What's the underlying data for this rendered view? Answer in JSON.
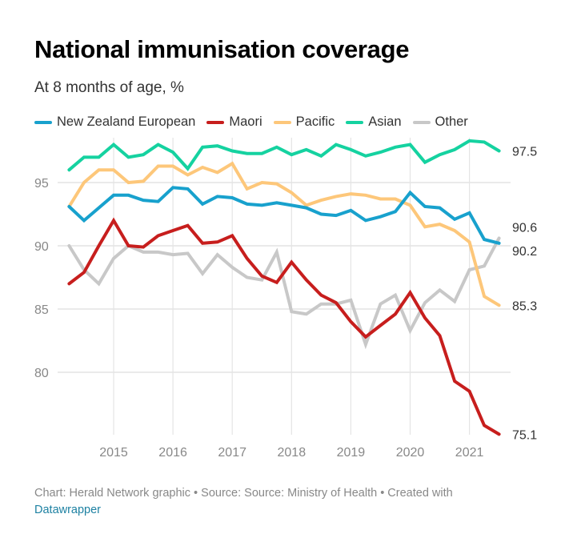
{
  "chart_data": {
    "type": "line",
    "title": "National immunisation coverage",
    "subtitle": "At 8 months of age, %",
    "xlabel": "",
    "ylabel": "",
    "x": [
      2014.25,
      2014.5,
      2014.75,
      2015.0,
      2015.25,
      2015.5,
      2015.75,
      2016.0,
      2016.25,
      2016.5,
      2016.75,
      2017.0,
      2017.25,
      2017.5,
      2017.75,
      2018.0,
      2018.25,
      2018.5,
      2018.75,
      2019.0,
      2019.25,
      2019.5,
      2019.75,
      2020.0,
      2020.25,
      2020.5,
      2020.75,
      2021.0,
      2021.25,
      2021.5
    ],
    "x_ticks": [
      2015,
      2016,
      2017,
      2018,
      2019,
      2020,
      2021
    ],
    "x_tick_labels": [
      "2015",
      "2016",
      "2017",
      "2018",
      "2019",
      "2020",
      "2021"
    ],
    "xlim": [
      2014.0,
      2021.7
    ],
    "y_ticks": [
      80,
      85,
      90,
      95
    ],
    "y_tick_labels": [
      "80",
      "85",
      "90",
      "95"
    ],
    "ylim": [
      74.8,
      98.8
    ],
    "grid": true,
    "legend_position": "top-left",
    "series": [
      {
        "name": "New Zealand European",
        "color": "#18a1cd",
        "end_label": "90.2",
        "values": [
          93.1,
          92.0,
          93.0,
          94.0,
          94.0,
          93.6,
          93.5,
          94.6,
          94.5,
          93.3,
          93.9,
          93.8,
          93.3,
          93.2,
          93.4,
          93.2,
          93.0,
          92.5,
          92.4,
          92.8,
          92.0,
          92.3,
          92.7,
          94.2,
          93.1,
          93.0,
          92.1,
          92.6,
          90.5,
          90.2
        ]
      },
      {
        "name": "Maori",
        "color": "#c71e1d",
        "end_label": "75.1",
        "values": [
          87.0,
          87.9,
          90.0,
          92.0,
          90.0,
          89.9,
          90.8,
          91.2,
          91.6,
          90.2,
          90.3,
          90.8,
          89.0,
          87.6,
          87.1,
          88.7,
          87.3,
          86.1,
          85.5,
          84.0,
          82.8,
          83.7,
          84.6,
          86.3,
          84.3,
          82.9,
          79.3,
          78.5,
          75.8,
          75.1
        ]
      },
      {
        "name": "Pacific",
        "color": "#fdc77a",
        "end_label": "85.3",
        "values": [
          93.1,
          95.0,
          96.0,
          96.0,
          95.0,
          95.1,
          96.3,
          96.3,
          95.6,
          96.2,
          95.8,
          96.5,
          94.5,
          95.0,
          94.9,
          94.2,
          93.2,
          93.6,
          93.9,
          94.1,
          94.0,
          93.7,
          93.7,
          93.2,
          91.5,
          91.7,
          91.2,
          90.3,
          86.0,
          85.3
        ]
      },
      {
        "name": "Asian",
        "color": "#15d2a0",
        "end_label": "97.5",
        "values": [
          96.0,
          97.0,
          97.0,
          98.0,
          97.0,
          97.2,
          98.0,
          97.4,
          96.1,
          97.8,
          97.9,
          97.5,
          97.3,
          97.3,
          97.8,
          97.2,
          97.6,
          97.1,
          98.0,
          97.6,
          97.1,
          97.4,
          97.8,
          98.0,
          96.6,
          97.2,
          97.6,
          98.3,
          98.2,
          97.5
        ]
      },
      {
        "name": "Other",
        "color": "#c8c8c8",
        "end_label": "90.6",
        "values": [
          90.0,
          88.1,
          87.0,
          89.0,
          90.0,
          89.5,
          89.5,
          89.3,
          89.4,
          87.8,
          89.3,
          88.3,
          87.5,
          87.3,
          89.5,
          84.8,
          84.6,
          85.4,
          85.4,
          85.7,
          82.2,
          85.4,
          86.1,
          83.3,
          85.5,
          86.5,
          85.6,
          88.1,
          88.4,
          90.6
        ]
      }
    ]
  },
  "footer": {
    "text": "Chart: Herald Network graphic • Source: Source: Ministry of Health • Created with",
    "link_label": "Datawrapper"
  }
}
